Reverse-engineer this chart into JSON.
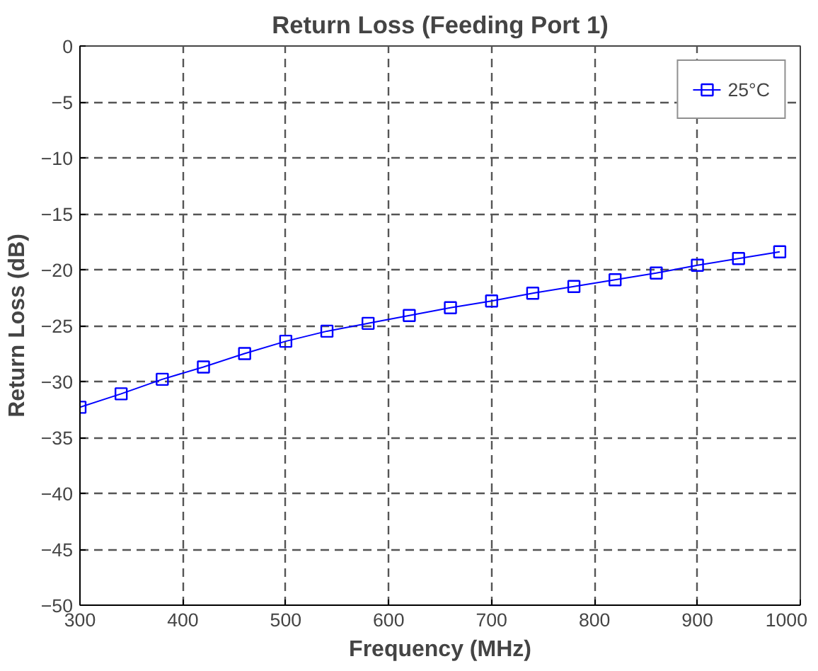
{
  "chart_data": {
    "type": "line",
    "title": "Return Loss (Feeding Port 1)",
    "xlabel": "Frequency (MHz)",
    "ylabel": "Return Loss (dB)",
    "x": [
      300,
      340,
      380,
      420,
      460,
      500,
      540,
      580,
      620,
      660,
      700,
      740,
      780,
      820,
      860,
      900,
      940,
      980
    ],
    "series": [
      {
        "name": "25°C",
        "color": "#0000ff",
        "values": [
          -32.3,
          -31.1,
          -29.8,
          -28.7,
          -27.5,
          -26.4,
          -25.5,
          -24.8,
          -24.1,
          -23.4,
          -22.8,
          -22.1,
          -21.5,
          -20.9,
          -20.3,
          -19.6,
          -19.0,
          -18.4
        ]
      }
    ],
    "xlim": [
      300,
      1000
    ],
    "ylim": [
      -50,
      0
    ],
    "xticks": [
      300,
      400,
      500,
      600,
      700,
      800,
      900,
      1000
    ],
    "yticks": [
      0,
      -5,
      -10,
      -15,
      -20,
      -25,
      -30,
      -35,
      -40,
      -45,
      -50
    ],
    "grid": true,
    "legend": "top right",
    "marker": "square",
    "line_style": "solid"
  }
}
